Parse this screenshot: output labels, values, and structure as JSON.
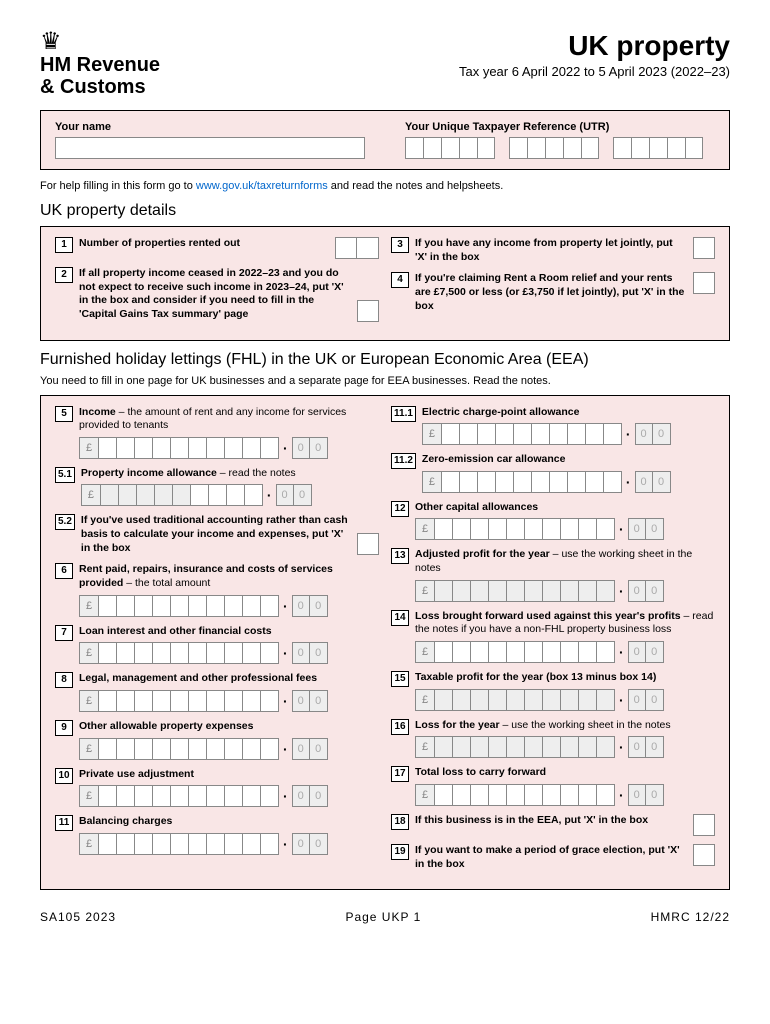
{
  "header": {
    "org_line1": "HM Revenue",
    "org_line2": "& Customs",
    "title": "UK property",
    "subtitle": "Tax year 6 April 2022 to 5 April 2023 (2022–23)"
  },
  "name_section": {
    "name_label": "Your name",
    "utr_label": "Your Unique Taxpayer Reference (UTR)"
  },
  "help": {
    "prefix": "For help filling in this form go to ",
    "link": "www.gov.uk/taxreturnforms",
    "suffix": " and read the notes and helpsheets."
  },
  "details": {
    "title": "UK property details",
    "q1": {
      "num": "1",
      "label_b": "Number of properties rented out"
    },
    "q2": {
      "num": "2",
      "label_b": "If all property income ceased in 2022–23 and you do not expect to receive such income in 2023–24, put 'X' in the box and consider if you need to fill in the 'Capital Gains Tax summary' page"
    },
    "q3": {
      "num": "3",
      "label_b": "If you have any income from property let jointly, put 'X' in the box"
    },
    "q4": {
      "num": "4",
      "label_b": "If you're claiming Rent a Room relief and your rents are £7,500 or less (or £3,750 if let jointly), put 'X' in the box"
    }
  },
  "fhl": {
    "title": "Furnished holiday lettings (FHL) in the UK or European Economic Area (EEA)",
    "sub": "You need to fill in one page for UK businesses and a separate page for EEA businesses. Read the notes.",
    "q5": {
      "num": "5",
      "b": "Income",
      "rest": " – the amount of rent and any income for services provided to tenants"
    },
    "q51": {
      "num": "5.1",
      "b": "Property income allowance",
      "rest": " – read the notes"
    },
    "q52": {
      "num": "5.2",
      "b": "If you've used traditional accounting rather than cash basis to calculate your income and expenses, put 'X' in the box"
    },
    "q6": {
      "num": "6",
      "b": "Rent paid, repairs, insurance and costs of services provided",
      "rest": " – the total amount"
    },
    "q7": {
      "num": "7",
      "b": "Loan interest and other financial costs"
    },
    "q8": {
      "num": "8",
      "b": "Legal, management and other professional fees"
    },
    "q9": {
      "num": "9",
      "b": "Other allowable property expenses"
    },
    "q10": {
      "num": "10",
      "b": "Private use adjustment"
    },
    "q11": {
      "num": "11",
      "b": "Balancing charges"
    },
    "q111": {
      "num": "11.1",
      "b": "Electric charge-point allowance"
    },
    "q112": {
      "num": "11.2",
      "b": "Zero-emission car allowance"
    },
    "q12": {
      "num": "12",
      "b": "Other capital allowances"
    },
    "q13": {
      "num": "13",
      "b": "Adjusted profit for the year",
      "rest": " – use the working sheet in the notes"
    },
    "q14": {
      "num": "14",
      "b": "Loss brought forward used against this year's profits",
      "rest": " – read the notes if you have a non-FHL property business loss"
    },
    "q15": {
      "num": "15",
      "b": "Taxable profit for the year (box 13 minus box 14)"
    },
    "q16": {
      "num": "16",
      "b": "Loss for the year",
      "rest": " – use the working sheet in the notes"
    },
    "q17": {
      "num": "17",
      "b": "Total loss to carry forward"
    },
    "q18": {
      "num": "18",
      "b": "If this business is in the EEA, put 'X' in the box"
    },
    "q19": {
      "num": "19",
      "b": "If you want to make a period of grace election, put 'X' in the box"
    }
  },
  "footer": {
    "left": "SA105 2023",
    "center": "Page UKP 1",
    "right": "HMRC 12/22"
  },
  "money": {
    "pound": "£",
    "zero": "0"
  }
}
